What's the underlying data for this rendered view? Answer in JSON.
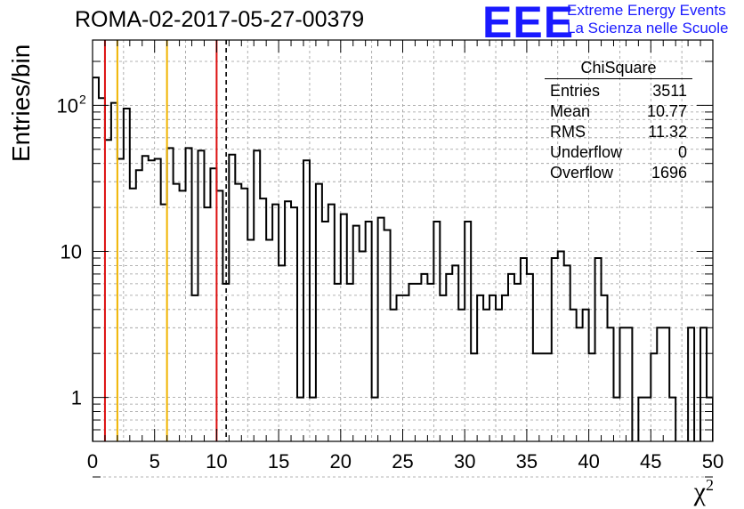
{
  "header": {
    "title": "ROMA-02-2017-05-27-00379"
  },
  "logo": {
    "mark": "EEE",
    "line1": "Extreme Energy Events",
    "line2": "La Scienza nelle Scuole",
    "color": "#1a1aff"
  },
  "stats": {
    "title": "ChiSquare",
    "rows": [
      {
        "label": "Entries",
        "value": "3511"
      },
      {
        "label": "Mean",
        "value": "10.77"
      },
      {
        "label": "RMS",
        "value": "11.32"
      },
      {
        "label": "Underflow",
        "value": "0"
      },
      {
        "label": "Overflow",
        "value": "1696"
      }
    ]
  },
  "chart_data": {
    "type": "histogram",
    "ylabel": "Entries/bin",
    "xlabel": "χ",
    "xlabel_sup": "2",
    "xlim": [
      0,
      50
    ],
    "ylim": [
      0.5,
      280
    ],
    "log_y": true,
    "grid": true,
    "bin_width": 0.5,
    "x_ticks": [
      "0",
      "5",
      "10",
      "15",
      "20",
      "25",
      "30",
      "35",
      "40",
      "45",
      "50"
    ],
    "y_ticks": [
      {
        "value": 1,
        "label": "1"
      },
      {
        "value": 10,
        "label": "10"
      },
      {
        "value": 100,
        "label": "10",
        "sup": "2"
      }
    ],
    "values": [
      155,
      112,
      58,
      104,
      43,
      95,
      27,
      36,
      45,
      42,
      43,
      21,
      51,
      29,
      26,
      51,
      5,
      49,
      20,
      37,
      26,
      6,
      46,
      29,
      27,
      12,
      49,
      23,
      12,
      21,
      8,
      22,
      20,
      1,
      42,
      1,
      29,
      16,
      21,
      6,
      18,
      6,
      15,
      10,
      16,
      1,
      17,
      14,
      4,
      5,
      5,
      6,
      6,
      7,
      6,
      16,
      5,
      7,
      8,
      4,
      16,
      2,
      5,
      4,
      5,
      4,
      5,
      7,
      6,
      9,
      7,
      2,
      2,
      2,
      9,
      10,
      8,
      4,
      3,
      4,
      2,
      9,
      5,
      3,
      1,
      3,
      3,
      0,
      1,
      1,
      2,
      3,
      3,
      1,
      0,
      0,
      3,
      0,
      3,
      1
    ],
    "vlines": [
      {
        "x": 1,
        "color": "#dd1111",
        "style": "solid"
      },
      {
        "x": 2,
        "color": "#f0b400",
        "style": "solid"
      },
      {
        "x": 6,
        "color": "#f0b400",
        "style": "solid"
      },
      {
        "x": 10,
        "color": "#dd1111",
        "style": "solid"
      },
      {
        "x": 10.77,
        "color": "#000000",
        "style": "dashed"
      }
    ]
  }
}
